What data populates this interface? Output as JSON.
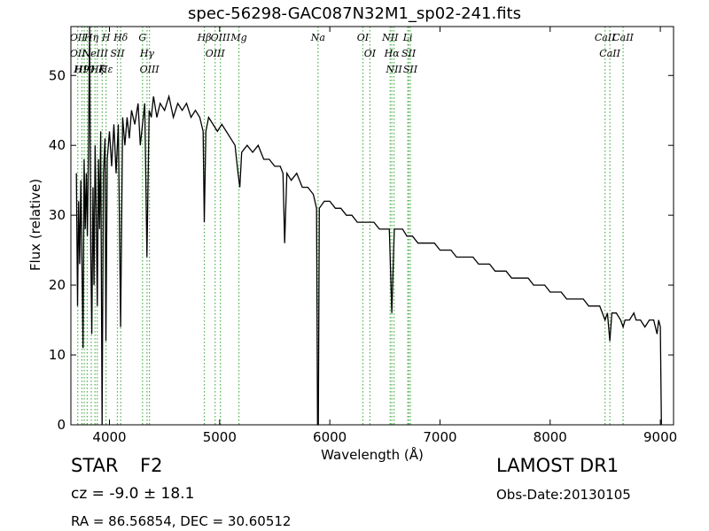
{
  "chart_data": {
    "type": "line",
    "title": "spec-56298-GAC087N32M1_sp02-241.fits",
    "xlabel": "Wavelength (Å)",
    "ylabel": "Flux (relative)",
    "xlim": [
      3650,
      9120
    ],
    "ylim": [
      0,
      57
    ],
    "xticks": [
      4000,
      5000,
      6000,
      7000,
      8000,
      9000
    ],
    "yticks": [
      0,
      10,
      20,
      30,
      40,
      50
    ],
    "grid": false,
    "series": [
      {
        "color": "#000000",
        "points": [
          [
            3700,
            36
          ],
          [
            3710,
            17
          ],
          [
            3720,
            32
          ],
          [
            3730,
            23
          ],
          [
            3740,
            35
          ],
          [
            3750,
            24
          ],
          [
            3760,
            11
          ],
          [
            3770,
            38
          ],
          [
            3780,
            28
          ],
          [
            3790,
            36
          ],
          [
            3800,
            27
          ],
          [
            3810,
            40
          ],
          [
            3820,
            57
          ],
          [
            3830,
            25
          ],
          [
            3840,
            13
          ],
          [
            3850,
            34
          ],
          [
            3860,
            20
          ],
          [
            3870,
            40
          ],
          [
            3880,
            30
          ],
          [
            3890,
            17
          ],
          [
            3900,
            38
          ],
          [
            3910,
            28
          ],
          [
            3920,
            42
          ],
          [
            3933,
            0
          ],
          [
            3945,
            36
          ],
          [
            3960,
            41
          ],
          [
            3968,
            12
          ],
          [
            3980,
            38
          ],
          [
            4000,
            42
          ],
          [
            4020,
            37
          ],
          [
            4040,
            43
          ],
          [
            4060,
            36
          ],
          [
            4080,
            43
          ],
          [
            4101,
            14
          ],
          [
            4120,
            44
          ],
          [
            4140,
            40
          ],
          [
            4160,
            44
          ],
          [
            4180,
            41
          ],
          [
            4200,
            45
          ],
          [
            4230,
            43
          ],
          [
            4260,
            46
          ],
          [
            4280,
            40
          ],
          [
            4300,
            43
          ],
          [
            4320,
            46
          ],
          [
            4340,
            24
          ],
          [
            4360,
            45
          ],
          [
            4380,
            44
          ],
          [
            4400,
            47
          ],
          [
            4430,
            44
          ],
          [
            4460,
            46
          ],
          [
            4500,
            45
          ],
          [
            4540,
            47
          ],
          [
            4580,
            44
          ],
          [
            4620,
            46
          ],
          [
            4660,
            45
          ],
          [
            4700,
            46
          ],
          [
            4740,
            44
          ],
          [
            4780,
            45
          ],
          [
            4820,
            44
          ],
          [
            4850,
            42
          ],
          [
            4861,
            29
          ],
          [
            4875,
            42
          ],
          [
            4900,
            44
          ],
          [
            4940,
            43
          ],
          [
            4980,
            42
          ],
          [
            5020,
            43
          ],
          [
            5060,
            42
          ],
          [
            5100,
            41
          ],
          [
            5140,
            40
          ],
          [
            5167,
            36
          ],
          [
            5183,
            34
          ],
          [
            5200,
            39
          ],
          [
            5250,
            40
          ],
          [
            5300,
            39
          ],
          [
            5350,
            40
          ],
          [
            5400,
            38
          ],
          [
            5450,
            38
          ],
          [
            5500,
            37
          ],
          [
            5550,
            37
          ],
          [
            5575,
            36
          ],
          [
            5590,
            26
          ],
          [
            5610,
            36
          ],
          [
            5650,
            35
          ],
          [
            5700,
            36
          ],
          [
            5750,
            34
          ],
          [
            5800,
            34
          ],
          [
            5850,
            33
          ],
          [
            5880,
            31
          ],
          [
            5889,
            0
          ],
          [
            5896,
            0
          ],
          [
            5905,
            31
          ],
          [
            5950,
            32
          ],
          [
            6000,
            32
          ],
          [
            6050,
            31
          ],
          [
            6100,
            31
          ],
          [
            6150,
            30
          ],
          [
            6200,
            30
          ],
          [
            6250,
            29
          ],
          [
            6300,
            29
          ],
          [
            6350,
            29
          ],
          [
            6400,
            29
          ],
          [
            6450,
            28
          ],
          [
            6500,
            28
          ],
          [
            6540,
            28
          ],
          [
            6563,
            16
          ],
          [
            6585,
            28
          ],
          [
            6620,
            28
          ],
          [
            6660,
            28
          ],
          [
            6700,
            27
          ],
          [
            6750,
            27
          ],
          [
            6800,
            26
          ],
          [
            6850,
            26
          ],
          [
            6900,
            26
          ],
          [
            6950,
            26
          ],
          [
            7000,
            25
          ],
          [
            7050,
            25
          ],
          [
            7100,
            25
          ],
          [
            7150,
            24
          ],
          [
            7200,
            24
          ],
          [
            7250,
            24
          ],
          [
            7300,
            24
          ],
          [
            7350,
            23
          ],
          [
            7400,
            23
          ],
          [
            7450,
            23
          ],
          [
            7500,
            22
          ],
          [
            7550,
            22
          ],
          [
            7600,
            22
          ],
          [
            7650,
            21
          ],
          [
            7700,
            21
          ],
          [
            7750,
            21
          ],
          [
            7800,
            21
          ],
          [
            7850,
            20
          ],
          [
            7900,
            20
          ],
          [
            7950,
            20
          ],
          [
            8000,
            19
          ],
          [
            8050,
            19
          ],
          [
            8100,
            19
          ],
          [
            8150,
            18
          ],
          [
            8200,
            18
          ],
          [
            8250,
            18
          ],
          [
            8300,
            18
          ],
          [
            8350,
            17
          ],
          [
            8400,
            17
          ],
          [
            8450,
            17
          ],
          [
            8498,
            15
          ],
          [
            8520,
            16
          ],
          [
            8542,
            12
          ],
          [
            8560,
            16
          ],
          [
            8600,
            16
          ],
          [
            8640,
            15
          ],
          [
            8662,
            14
          ],
          [
            8680,
            15
          ],
          [
            8720,
            15
          ],
          [
            8760,
            16
          ],
          [
            8780,
            15
          ],
          [
            8820,
            15
          ],
          [
            8860,
            14
          ],
          [
            8900,
            15
          ],
          [
            8940,
            15
          ],
          [
            8970,
            13
          ],
          [
            8985,
            15
          ],
          [
            9000,
            14
          ],
          [
            9010,
            0
          ]
        ]
      }
    ],
    "lines": [
      {
        "x": 3712,
        "labels": [
          "OII",
          "OII"
        ]
      },
      {
        "x": 3750,
        "labels": [
          "H9"
        ]
      },
      {
        "x": 3771,
        "labels": [
          "H10"
        ]
      },
      {
        "x": 3798,
        "labels": []
      },
      {
        "x": 3835,
        "labels": [
          "Hη"
        ]
      },
      {
        "x": 3869,
        "labels": [
          "NeIII"
        ]
      },
      {
        "x": 3889,
        "labels": [
          "Hζ"
        ]
      },
      {
        "x": 3934,
        "labels": [
          "K"
        ]
      },
      {
        "x": 3969,
        "labels": [
          "H",
          "Hε"
        ]
      },
      {
        "x": 4072,
        "labels": [
          "SII"
        ]
      },
      {
        "x": 4102,
        "labels": [
          "Hδ"
        ]
      },
      {
        "x": 4300,
        "labels": [
          "G"
        ]
      },
      {
        "x": 4341,
        "labels": [
          "Hγ"
        ]
      },
      {
        "x": 4363,
        "labels": [
          "OIII"
        ]
      },
      {
        "x": 4861,
        "labels": [
          "Hβ"
        ]
      },
      {
        "x": 4959,
        "labels": [
          "OIII"
        ]
      },
      {
        "x": 5007,
        "labels": [
          "OIII"
        ]
      },
      {
        "x": 5175,
        "labels": [
          "Mg"
        ]
      },
      {
        "x": 5893,
        "labels": [
          "Na"
        ]
      },
      {
        "x": 6300,
        "labels": [
          "OI"
        ]
      },
      {
        "x": 6364,
        "labels": [
          "OI"
        ]
      },
      {
        "x": 6548,
        "labels": [
          "NII"
        ]
      },
      {
        "x": 6563,
        "labels": [
          "Hα"
        ]
      },
      {
        "x": 6583,
        "labels": [
          "NII"
        ]
      },
      {
        "x": 6708,
        "labels": [
          "Li"
        ]
      },
      {
        "x": 6716,
        "labels": [
          "SII"
        ]
      },
      {
        "x": 6731,
        "labels": [
          "SII"
        ]
      },
      {
        "x": 8498,
        "labels": [
          "CaII"
        ]
      },
      {
        "x": 8542,
        "labels": [
          "CaII"
        ]
      },
      {
        "x": 8662,
        "labels": [
          "CaII"
        ]
      }
    ],
    "line_color": "#4daf4a"
  },
  "info": {
    "class_label": "STAR",
    "subclass_label": "F2",
    "cz_line": "cz = -9.0 ± 18.1",
    "radec_line": "RA = 86.56854, DEC = 30.60512",
    "survey_label": "LAMOST DR1",
    "obs_date": "Obs-Date:20130105"
  }
}
